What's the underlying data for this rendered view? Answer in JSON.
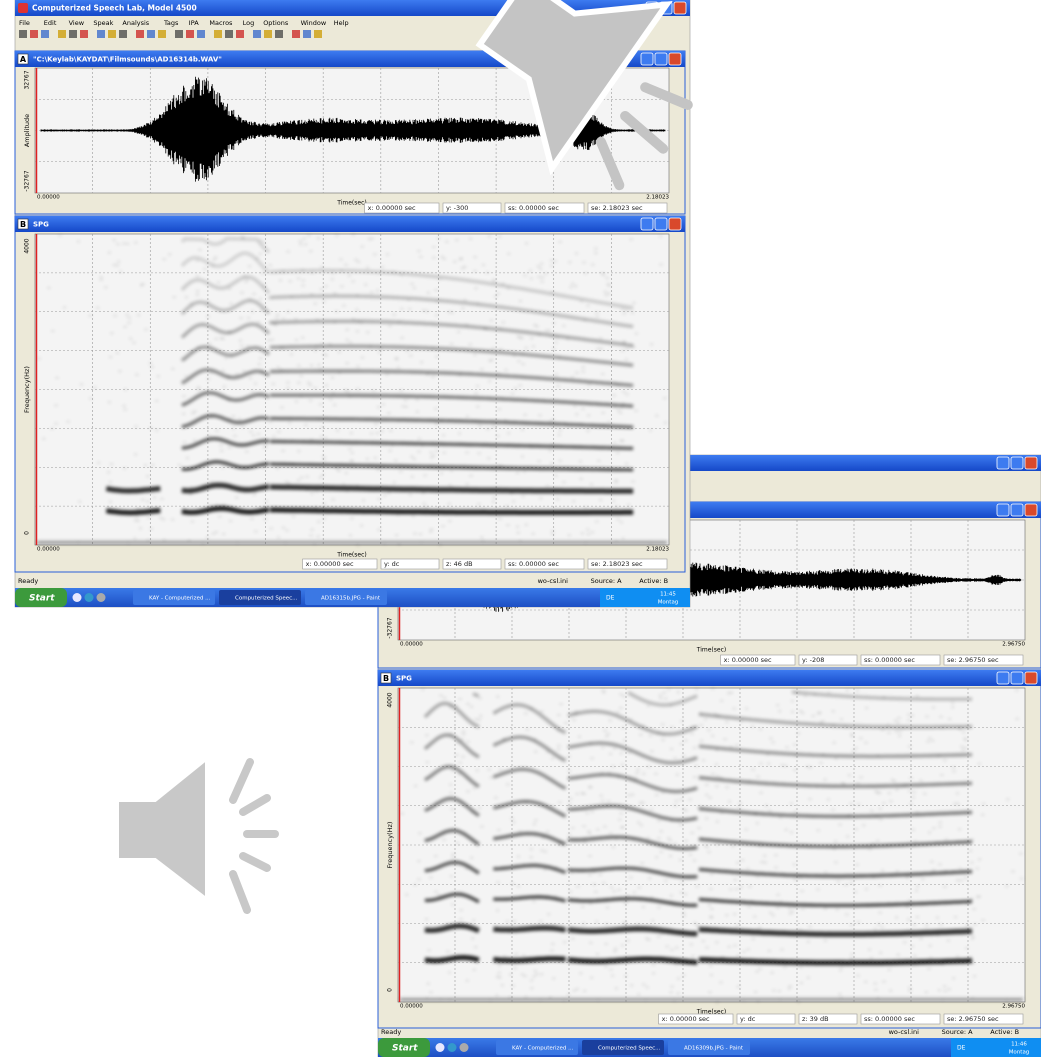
{
  "screenshot_1": {
    "window_title": "Computerized Speech Lab, Model 4500",
    "menu": [
      "File",
      "Edit",
      "View",
      "Speak",
      "Analysis",
      "Tags",
      "IPA",
      "Macros",
      "Log",
      "Options",
      "Window",
      "Help"
    ],
    "panel_a": {
      "letter": "A",
      "title": "\"C:\\Keylab\\KAYDAT\\Filmsounds\\AD16314b.WAV\"",
      "y_top": "32767",
      "y_label": "Amplitude",
      "y_bottom": "-32767",
      "x_start": "0.00000",
      "x_end": "2.18023",
      "x_label": "Time(sec)",
      "status": [
        "x: 0.00000 sec",
        "y: -300",
        "ss: 0.00000 sec",
        "se: 2.18023 sec"
      ]
    },
    "panel_b": {
      "letter": "B",
      "title": "SPG",
      "y_top": "4000",
      "y_label": "Frequency(Hz)",
      "y_bottom": "0",
      "x_start": "0.00000",
      "x_end": "2.18023",
      "x_label": "Time(sec)",
      "status": [
        "x: 0.00000 sec",
        "y: dc",
        "z: 46 dB",
        "ss: 0.00000 sec",
        "se: 2.18023 sec"
      ]
    },
    "status_bar": {
      "ready": "Ready",
      "fields": [
        "wo-csl.ini",
        "Source: A",
        "Active: B"
      ]
    },
    "taskbar": {
      "start": "Start",
      "tasks": [
        "KAY - Computerized ...",
        "Computerized Speec...",
        "AD16315b.JPG - Paint"
      ],
      "tray": [
        "DE",
        "11:45",
        "Montag"
      ]
    }
  },
  "screenshot_2": {
    "panel_a": {
      "y_bottom": "-32767",
      "x_start": "0.00000",
      "x_end": "2.96750",
      "x_label": "Time(sec)",
      "status": [
        "x: 0.00000 sec",
        "y: -208",
        "ss: 0.00000 sec",
        "se: 2.96750 sec"
      ]
    },
    "panel_b": {
      "letter": "B",
      "title": "SPG",
      "y_top": "4000",
      "y_label": "Frequency(Hz)",
      "y_bottom": "0",
      "x_start": "0.00000",
      "x_end": "2.96750",
      "x_label": "Time(sec)",
      "status": [
        "x: 0.00000 sec",
        "y: dc",
        "z: 39 dB",
        "ss: 0.00000 sec",
        "se: 2.96750 sec"
      ]
    },
    "status_bar": {
      "ready": "Ready",
      "fields": [
        "wo-csl.ini",
        "Source: A",
        "Active: B"
      ]
    },
    "taskbar": {
      "start": "Start",
      "tasks": [
        "KAY - Computerized ...",
        "Computerized Speec...",
        "AD16309b.JPG - Paint"
      ],
      "tray": [
        "DE",
        "11:46",
        "Montag"
      ]
    }
  }
}
